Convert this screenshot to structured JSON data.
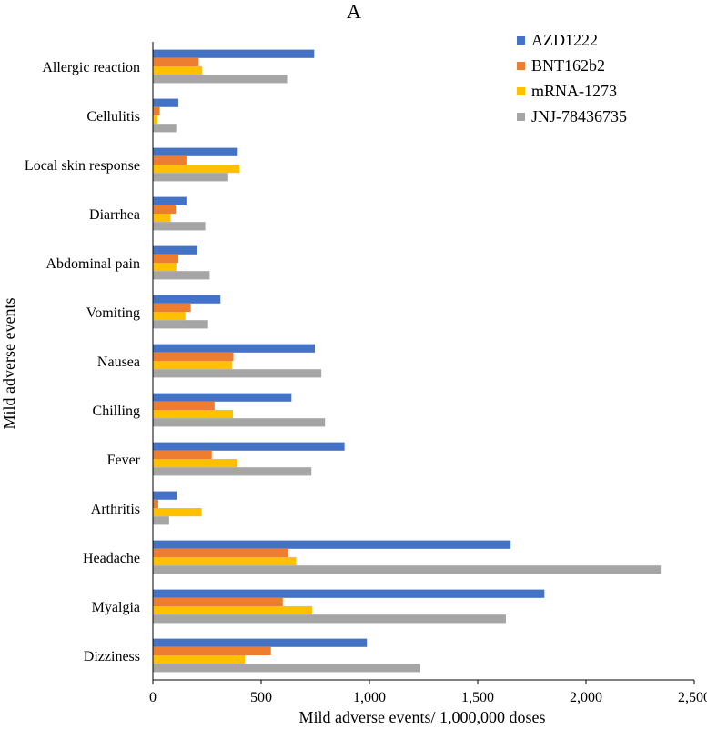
{
  "chart_data": {
    "type": "bar",
    "orientation": "horizontal",
    "title": "A",
    "xlabel": "Mild adverse events/ 1,000,000 doses",
    "ylabel": "Mild adverse events",
    "xlim": [
      0,
      2500
    ],
    "xticks": [
      0,
      500,
      1000,
      1500,
      2000,
      2500
    ],
    "xtick_labels": [
      "0",
      "500",
      "1,000",
      "1,500",
      "2,000",
      "2,500"
    ],
    "grid": false,
    "legend_position": "top-right",
    "categories": [
      "Allergic reaction",
      "Cellulitis",
      "Local skin response",
      "Diarrhea",
      "Abdominal pain",
      "Vomiting",
      "Nausea",
      "Chilling",
      "Fever",
      "Arthritis",
      "Headache",
      "Myalgia",
      "Dizziness"
    ],
    "series": [
      {
        "name": "AZD1222",
        "color": "#4472C4",
        "values": [
          745,
          118,
          392,
          155,
          205,
          312,
          748,
          640,
          885,
          110,
          1652,
          1808,
          988
        ]
      },
      {
        "name": "BNT162b2",
        "color": "#ED7D31",
        "values": [
          212,
          32,
          155,
          105,
          118,
          175,
          372,
          285,
          272,
          25,
          625,
          600,
          545
        ]
      },
      {
        "name": "mRNA-1273",
        "color": "#FFC000",
        "values": [
          228,
          22,
          400,
          82,
          108,
          150,
          365,
          370,
          390,
          225,
          662,
          735,
          425
        ]
      },
      {
        "name": "JNJ-78436735",
        "color": "#A5A5A5",
        "values": [
          620,
          108,
          348,
          242,
          262,
          255,
          778,
          795,
          732,
          75,
          2345,
          1630,
          1235
        ]
      }
    ]
  }
}
